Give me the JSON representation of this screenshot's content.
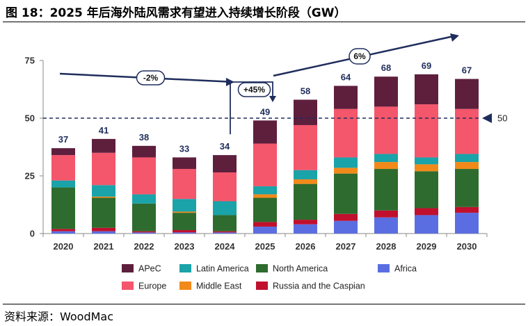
{
  "header": {
    "title": "图 18：2025 年后海外陆风需求有望进入持续增长阶段（GW）"
  },
  "footer": {
    "source": "资料来源：WoodMac"
  },
  "chart_data": {
    "type": "bar",
    "stacked": true,
    "categories": [
      "2020",
      "2021",
      "2022",
      "2023",
      "2024",
      "2025",
      "2026",
      "2027",
      "2028",
      "2029",
      "2030"
    ],
    "series": [
      {
        "name": "Africa",
        "color": "#5b6ee1",
        "values": [
          1.0,
          1.0,
          0.5,
          0.5,
          0.5,
          3.0,
          4.0,
          5.5,
          7.0,
          8.0,
          9.0
        ]
      },
      {
        "name": "Russia and the Caspian",
        "color": "#c0102e",
        "values": [
          1.0,
          1.5,
          0.5,
          1.0,
          0.5,
          2.0,
          2.0,
          3.0,
          3.0,
          3.0,
          2.5
        ]
      },
      {
        "name": "North America",
        "color": "#2e6b2e",
        "values": [
          18.0,
          13.0,
          12.0,
          7.5,
          7.0,
          10.5,
          15.5,
          17.5,
          18.0,
          16.0,
          16.5
        ]
      },
      {
        "name": "Middle East",
        "color": "#f28a1a",
        "values": [
          0.0,
          0.5,
          0.0,
          0.5,
          0.0,
          1.5,
          2.0,
          2.5,
          3.0,
          3.0,
          3.0
        ]
      },
      {
        "name": "Latin America",
        "color": "#1aa3a8",
        "values": [
          3.0,
          5.0,
          4.0,
          5.5,
          6.0,
          3.5,
          4.0,
          4.5,
          3.5,
          3.0,
          3.5
        ]
      },
      {
        "name": "Europe",
        "color": "#f4566b",
        "values": [
          11.0,
          14.0,
          16.0,
          13.0,
          12.5,
          18.5,
          19.5,
          21.0,
          20.5,
          23.0,
          19.5
        ]
      },
      {
        "name": "APeC",
        "color": "#5e1f3d",
        "values": [
          3.0,
          6.0,
          5.0,
          5.0,
          7.5,
          10.0,
          11.0,
          10.0,
          13.0,
          13.0,
          13.0
        ]
      }
    ],
    "totals": [
      37,
      41,
      38,
      33,
      34,
      49,
      58,
      64,
      68,
      69,
      67
    ],
    "total_labels": [
      "37",
      "41",
      "38",
      "33",
      "34",
      "49",
      "58",
      "64",
      "68",
      "69",
      "67"
    ],
    "yticks": [
      0,
      25,
      50,
      75
    ],
    "ytick_labels": [
      "0",
      "25",
      "50",
      "75"
    ],
    "ylim": [
      0,
      75
    ],
    "reference_line": {
      "value": 50,
      "label": "50",
      "style": "dashed",
      "color": "#1f2d5c"
    },
    "annotations": [
      {
        "label": "-2%",
        "from": "2020",
        "to": "2024",
        "trend": "down"
      },
      {
        "label": "+45%",
        "from": "2024",
        "to": "2025",
        "trend": "up"
      },
      {
        "label": "6%",
        "from": "2025",
        "to": "2030",
        "trend": "up"
      }
    ],
    "legend": {
      "placement": "bottom",
      "rows": [
        [
          "APeC",
          "Latin America",
          "North America",
          "Africa"
        ],
        [
          "Europe",
          "Middle East",
          "Russia and the Caspian"
        ]
      ]
    },
    "xlabel": "",
    "ylabel": "",
    "grid": false
  }
}
